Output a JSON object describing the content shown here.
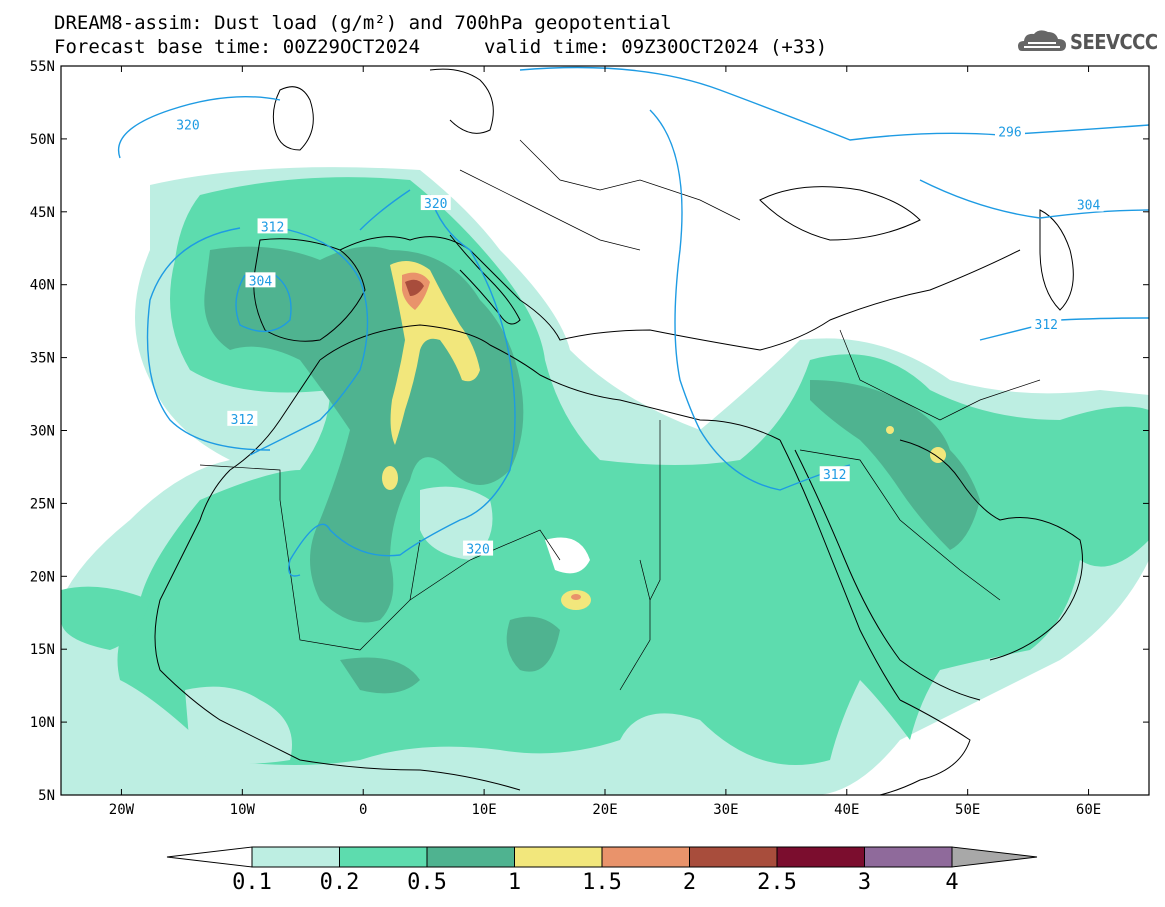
{
  "title": {
    "line1": "DREAM8-assim: Dust load (g/m²) and 700hPa geopotential",
    "line2_left": "Forecast base time: 00Z29OCT2024",
    "line2_right": "valid time: 09Z30OCT2024 (+33)"
  },
  "logo": {
    "text": "SEEVCCC",
    "icon": "cloud-logo-icon"
  },
  "map": {
    "lon_range": [
      -25,
      65
    ],
    "lat_range": [
      5,
      55
    ],
    "x_ticks": [
      "20W",
      "10W",
      "0",
      "10E",
      "20E",
      "30E",
      "40E",
      "50E",
      "60E"
    ],
    "x_tick_values": [
      -20,
      -10,
      0,
      10,
      20,
      30,
      40,
      50,
      60
    ],
    "y_ticks": [
      "5N",
      "10N",
      "15N",
      "20N",
      "25N",
      "30N",
      "35N",
      "40N",
      "45N",
      "50N",
      "55N"
    ],
    "y_tick_values": [
      5,
      10,
      15,
      20,
      25,
      30,
      35,
      40,
      45,
      50,
      55
    ]
  },
  "contour_labels": [
    {
      "text": "320",
      "lon": -14.5,
      "lat": 51.0
    },
    {
      "text": "312",
      "lon": -7.5,
      "lat": 44.0
    },
    {
      "text": "304",
      "lon": -8.5,
      "lat": 40.3
    },
    {
      "text": "320",
      "lon": 6.0,
      "lat": 45.6
    },
    {
      "text": "312",
      "lon": -10.0,
      "lat": 30.8
    },
    {
      "text": "320",
      "lon": 9.5,
      "lat": 21.9
    },
    {
      "text": "312",
      "lon": 39.0,
      "lat": 27.0
    },
    {
      "text": "296",
      "lon": 53.5,
      "lat": 50.5
    },
    {
      "text": "304",
      "lon": 60.0,
      "lat": 45.5
    },
    {
      "text": "312",
      "lon": 56.5,
      "lat": 37.3
    }
  ],
  "colorbar": {
    "labels": [
      "0.1",
      "0.2",
      "0.5",
      "1",
      "1.5",
      "2",
      "2.5",
      "3",
      "4"
    ],
    "colors": [
      "#ffffff",
      "#bdeee2",
      "#5ddcae",
      "#4fb390",
      "#f2e77c",
      "#e9936b",
      "#a84d3c",
      "#7b0d2e",
      "#8f6a9b",
      "#a8a8a8"
    ]
  },
  "dust_levels": {
    "lt_0.1": "#ffffff",
    "0.1-0.2": "#bdeee2",
    "0.2-0.5": "#5ddcae",
    "0.5-1": "#4fb390",
    "1-1.5": "#f2e77c",
    "1.5-2": "#e9936b",
    "2-2.5": "#a84d3c",
    "2.5-3": "#7b0d2e",
    "3-4": "#8f6a9b",
    "gt_4": "#a8a8a8"
  },
  "colors": {
    "contour": "#1e9be3",
    "coast": "#000000"
  }
}
